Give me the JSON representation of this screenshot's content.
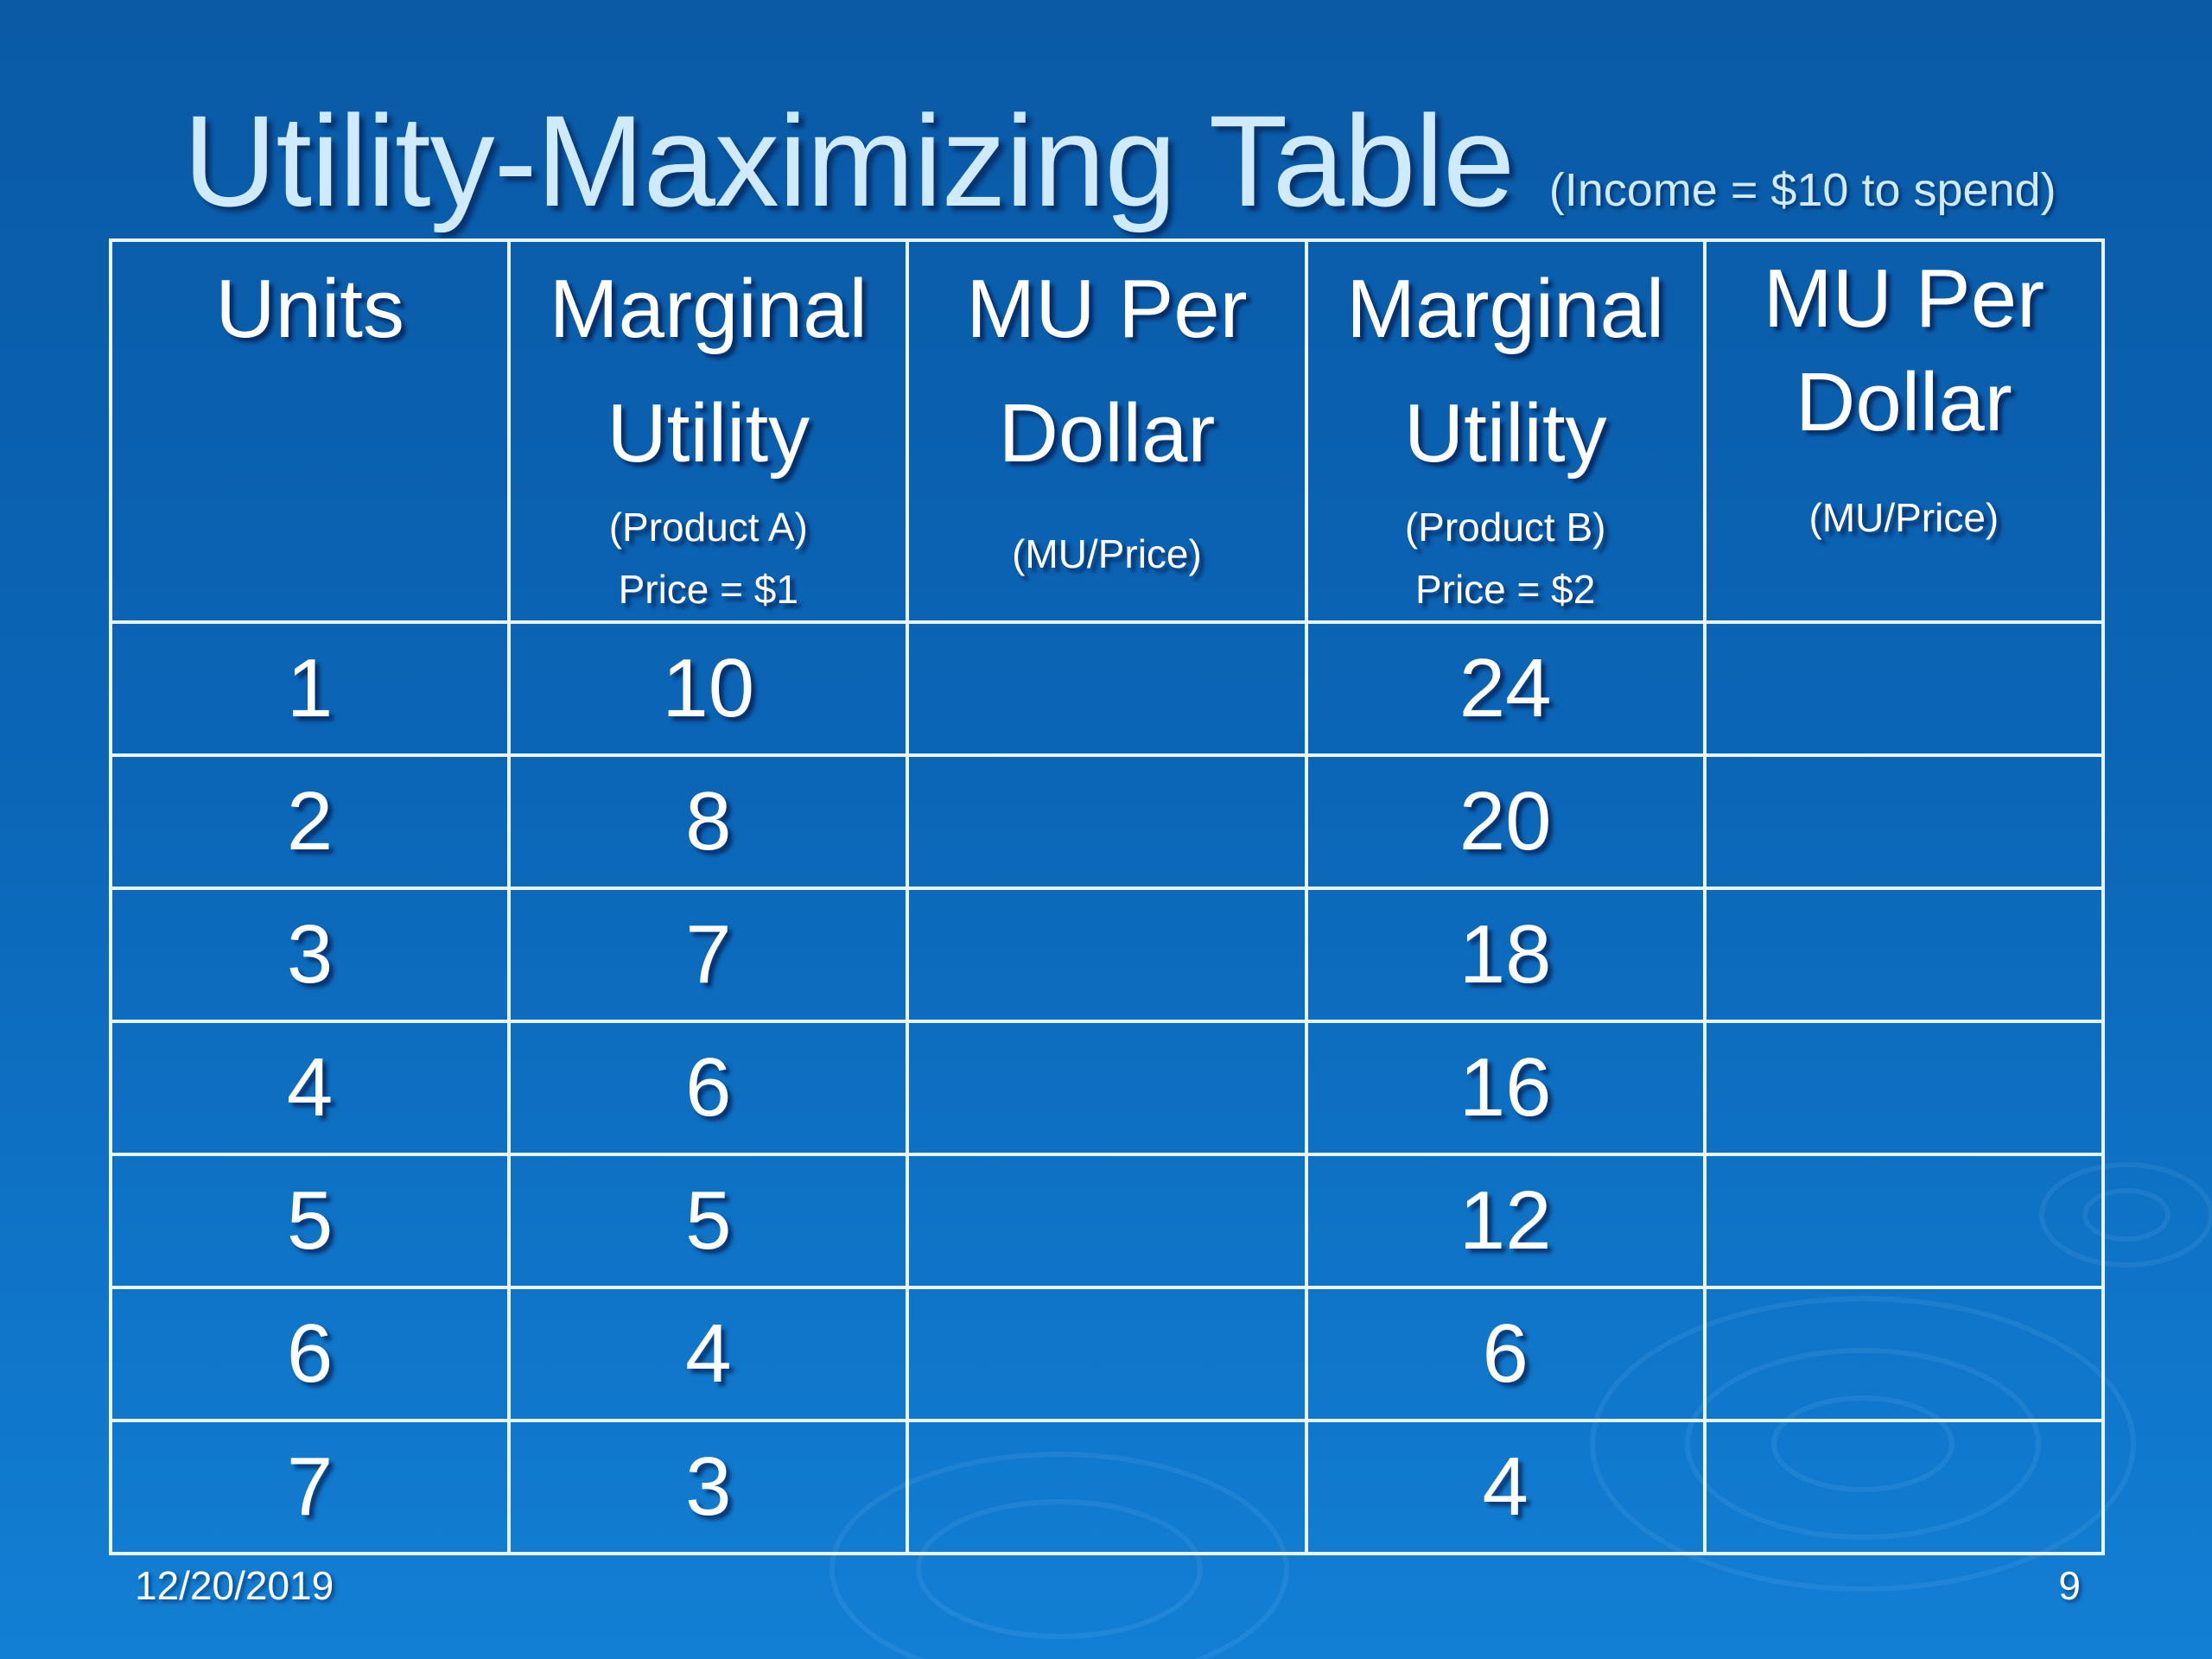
{
  "slide": {
    "title": "Utility-Maximizing Table",
    "subtitle": "(Income = $10 to spend)",
    "date": "12/20/2019",
    "page_number": "9"
  },
  "table": {
    "headers": [
      {
        "main": "Units",
        "sub": "",
        "price": "",
        "paren": ""
      },
      {
        "main": "Marginal Utility",
        "sub": "(Product A)",
        "price": "Price = $1",
        "paren": ""
      },
      {
        "main": "MU Per Dollar",
        "sub": "",
        "price": "",
        "paren": "(MU/Price)"
      },
      {
        "main": "Marginal Utility",
        "sub": "(Product B)",
        "price": "Price = $2",
        "paren": ""
      },
      {
        "main": "MU Per Dollar",
        "sub": "",
        "price": "",
        "paren": "(MU/Price)"
      }
    ],
    "rows": [
      [
        "1",
        "10",
        "",
        "24",
        ""
      ],
      [
        "2",
        "8",
        "",
        "20",
        ""
      ],
      [
        "3",
        "7",
        "",
        "18",
        ""
      ],
      [
        "4",
        "6",
        "",
        "16",
        ""
      ],
      [
        "5",
        "5",
        "",
        "12",
        ""
      ],
      [
        "6",
        "4",
        "",
        "6",
        ""
      ],
      [
        "7",
        "3",
        "",
        "4",
        ""
      ]
    ]
  }
}
